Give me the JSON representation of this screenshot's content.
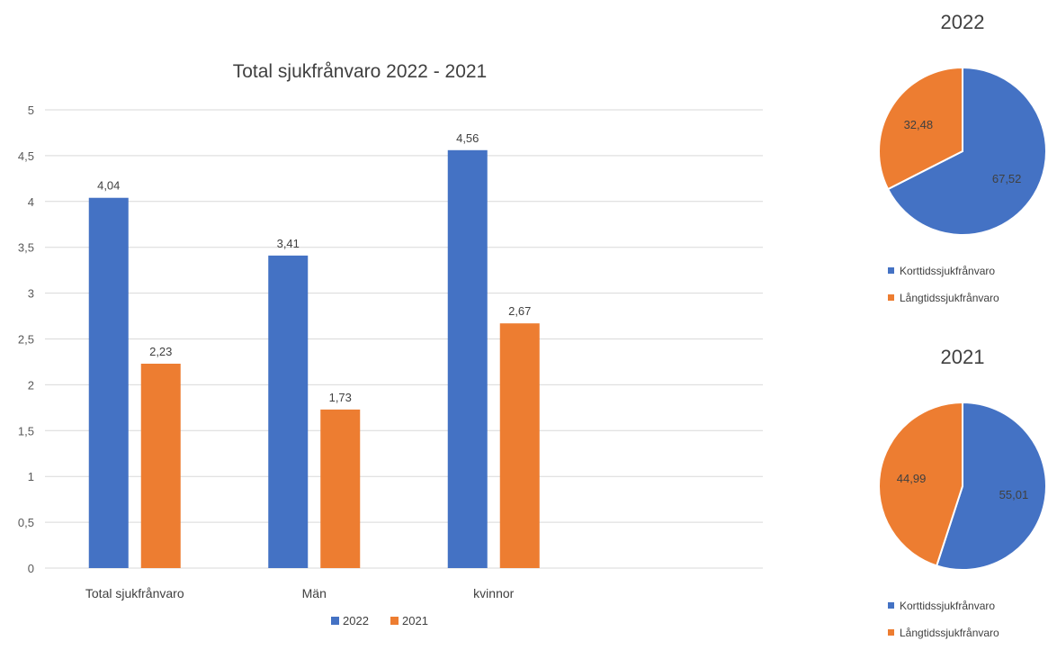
{
  "colors": {
    "series_2022": "#4472C4",
    "series_2021": "#ED7D31",
    "grid": "#D9D9D9",
    "text": "#595959"
  },
  "chart_data": [
    {
      "type": "bar",
      "title": "Total sjukfrånvaro 2022 - 2021",
      "categories": [
        "Total sjukfrånvaro",
        "Män",
        "kvinnor"
      ],
      "series": [
        {
          "name": "2022",
          "values": [
            4.04,
            3.41,
            4.56
          ],
          "labels": [
            "4,04",
            "3,41",
            "4,56"
          ]
        },
        {
          "name": "2021",
          "values": [
            2.23,
            1.73,
            2.67
          ],
          "labels": [
            "2,23",
            "1,73",
            "2,67"
          ]
        }
      ],
      "yticks": [
        "0",
        "0,5",
        "1",
        "1,5",
        "2",
        "2,5",
        "3",
        "3,5",
        "4",
        "4,5",
        "5"
      ],
      "ylim": [
        0,
        5
      ],
      "grid": true,
      "legend_position": "bottom"
    },
    {
      "type": "pie",
      "title": "2022",
      "labels": [
        "Korttidssjukfrånvaro",
        "Långtidssjukfrånvaro"
      ],
      "values": [
        67.52,
        32.48
      ],
      "value_labels": [
        "67,52",
        "32,48"
      ],
      "legend_position": "bottom"
    },
    {
      "type": "pie",
      "title": "2021",
      "labels": [
        "Korttidssjukfrånvaro",
        "Långtidssjukfrånvaro"
      ],
      "values": [
        55.01,
        44.99
      ],
      "value_labels": [
        "55,01",
        "44,99"
      ],
      "legend_position": "bottom"
    }
  ]
}
